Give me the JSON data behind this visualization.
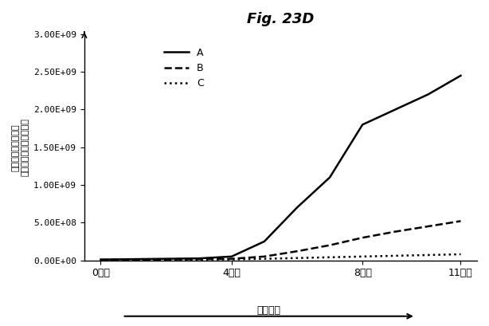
{
  "title": "Fig. 23D",
  "xlabel": "培養日数",
  "ylabel": "手作業の計数により\n評価した生存細胞の全数",
  "x_ticks": [
    0,
    4,
    8,
    11
  ],
  "x_tick_labels": [
    "0日目",
    "4日目",
    "8日目",
    "11日目"
  ],
  "ylim": [
    0,
    3000000000.0
  ],
  "y_ticks": [
    0,
    500000000.0,
    1000000000.0,
    1500000000.0,
    2000000000.0,
    2500000000.0,
    3000000000.0
  ],
  "y_tick_labels": [
    "0.00E+00",
    "5.00E+08",
    "1.00E+09",
    "1.50E+09",
    "2.00E+09",
    "2.50E+09",
    "3.00E+09"
  ],
  "series": {
    "A": {
      "x": [
        0,
        1,
        2,
        3,
        4,
        5,
        6,
        7,
        8,
        9,
        10,
        11
      ],
      "y": [
        10000000.0,
        15000000.0,
        20000000.0,
        25000000.0,
        50000000.0,
        250000000.0,
        700000000.0,
        1100000000.0,
        1800000000.0,
        2000000000.0,
        2200000000.0,
        2450000000.0
      ],
      "color": "#000000",
      "linestyle": "-",
      "linewidth": 1.8,
      "label": "A"
    },
    "B": {
      "x": [
        0,
        1,
        2,
        3,
        4,
        5,
        6,
        7,
        8,
        9,
        10,
        11
      ],
      "y": [
        5000000.0,
        8000000.0,
        10000000.0,
        15000000.0,
        20000000.0,
        50000000.0,
        120000000.0,
        200000000.0,
        300000000.0,
        380000000.0,
        450000000.0,
        520000000.0
      ],
      "color": "#000000",
      "linestyle": "--",
      "linewidth": 1.8,
      "label": "B"
    },
    "C": {
      "x": [
        0,
        1,
        2,
        3,
        4,
        5,
        6,
        7,
        8,
        9,
        10,
        11
      ],
      "y": [
        5000000.0,
        7000000.0,
        8000000.0,
        10000000.0,
        12000000.0,
        20000000.0,
        30000000.0,
        40000000.0,
        50000000.0,
        60000000.0,
        70000000.0,
        80000000.0
      ],
      "color": "#000000",
      "linestyle": ":",
      "linewidth": 1.8,
      "label": "C"
    }
  },
  "legend_loc": "upper left",
  "background_color": "#ffffff"
}
